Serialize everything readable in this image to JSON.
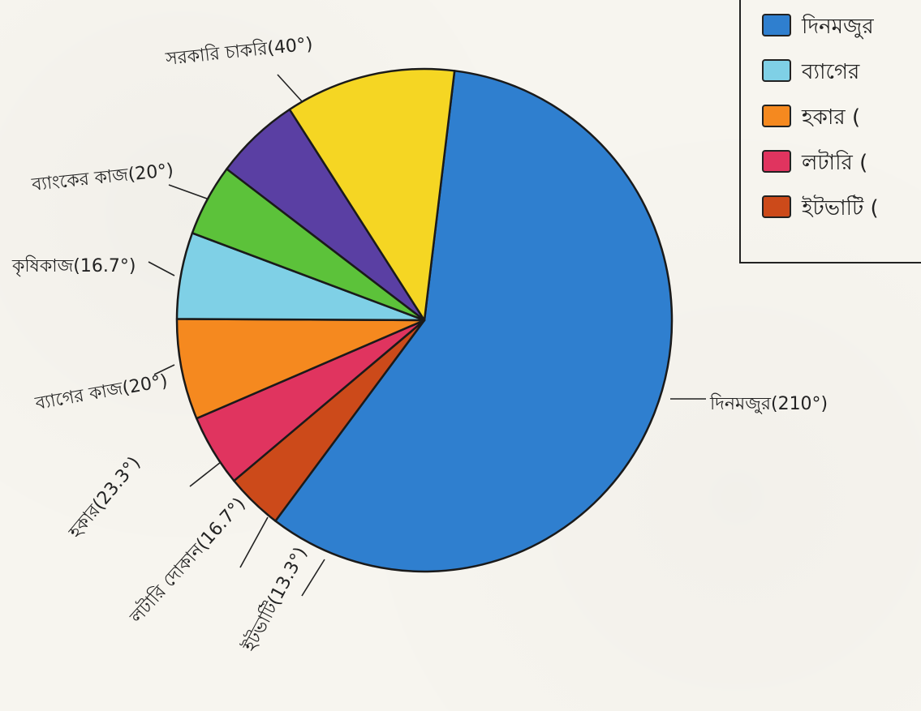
{
  "chart_data": {
    "type": "pie",
    "unit": "°",
    "slices": [
      {
        "id": "din",
        "label": "দিনমজুর",
        "value": 210,
        "value_text": "(210°)",
        "color": "#2f7fcf"
      },
      {
        "id": "itbhata",
        "label": "ইটভাটি",
        "value": 13.3,
        "value_text": "(13.3°)",
        "color": "#cc4a1a"
      },
      {
        "id": "lottery",
        "label": "লটারি দোকান",
        "value": 16.7,
        "value_text": "(16.7°)",
        "color": "#e0345f"
      },
      {
        "id": "hawker",
        "label": "হকার",
        "value": 23.3,
        "value_text": "(23.3°)",
        "color": "#f5891f"
      },
      {
        "id": "bag",
        "label": "ব্যাগের কাজ",
        "value": 20,
        "value_text": "(20°)",
        "color": "#7fd0e6"
      },
      {
        "id": "krishi",
        "label": "কৃষিকাজ",
        "value": 16.7,
        "value_text": "(16.7°)",
        "color": "#5cc23a"
      },
      {
        "id": "bank",
        "label": "ব্যাংকের কাজ",
        "value": 20,
        "value_text": "(20°)",
        "color": "#5a3fa3"
      },
      {
        "id": "sarkari",
        "label": "সরকারি চাকরি",
        "value": 40,
        "value_text": "(40°)",
        "color": "#f5d623"
      }
    ],
    "legend": {
      "placement": "top-right",
      "items": [
        {
          "color": "#2f7fcf",
          "text": "দিনমজুর"
        },
        {
          "color": "#7fd0e6",
          "text": "ব্যাগের"
        },
        {
          "color": "#f5891f",
          "text": "হকার ("
        },
        {
          "color": "#e0345f",
          "text": "লটারি ("
        },
        {
          "color": "#cc4a1a",
          "text": "ইটভাটি ("
        }
      ]
    }
  }
}
